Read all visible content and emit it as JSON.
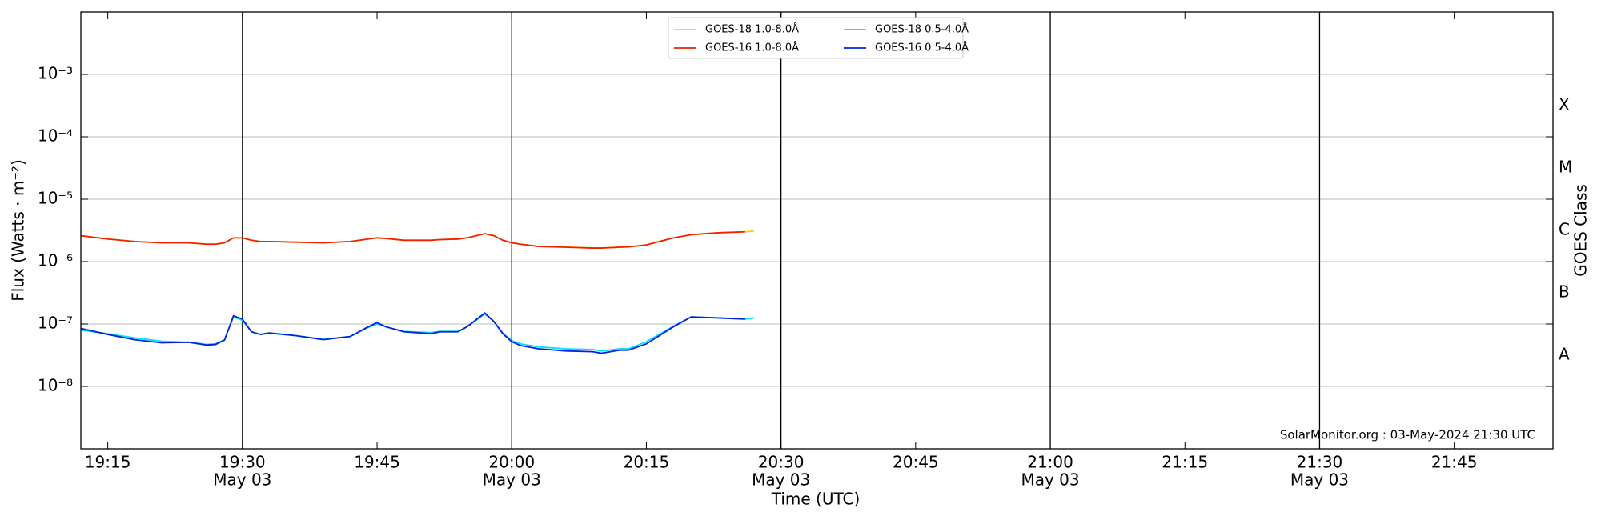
{
  "chart_data": {
    "type": "line",
    "y_label": "Flux (Watts · m⁻²)",
    "x_label": "Time (UTC)",
    "y2_label": "GOES Class",
    "annotation": "SolarMonitor.org : 03-May-2024 21:30 UTC",
    "log_y": true,
    "grid": true,
    "legend": "top-center",
    "x": [
      "19:12",
      "19:15",
      "19:18",
      "19:21",
      "19:24",
      "19:26",
      "19:27",
      "19:28",
      "19:29",
      "19:30",
      "19:31",
      "19:32",
      "19:33",
      "19:36",
      "19:39",
      "19:42",
      "19:44",
      "19:45",
      "19:46",
      "19:48",
      "19:51",
      "19:52",
      "19:54",
      "19:55",
      "19:57",
      "19:58",
      "19:59",
      "20:00",
      "20:01",
      "20:03",
      "20:06",
      "20:09",
      "20:10",
      "20:12",
      "20:13",
      "20:15",
      "20:18",
      "20:20",
      "20:23",
      "20:26",
      "20:27"
    ],
    "xlim": [
      "19:12",
      "21:56"
    ],
    "xticks": [
      "19:15",
      {
        "value": "19:30",
        "label": [
          "19:30",
          "May 03"
        ]
      },
      "19:45",
      {
        "value": "20:00",
        "label": [
          "20:00",
          "May 03"
        ]
      },
      "20:15",
      {
        "value": "20:30",
        "label": [
          "20:30",
          "May 03"
        ]
      },
      "20:45",
      {
        "value": "21:00",
        "label": [
          "21:00",
          "May 03"
        ]
      },
      "21:15",
      {
        "value": "21:30",
        "label": [
          "21:30",
          "May 03"
        ]
      },
      "21:45"
    ],
    "ylim": [
      1e-09,
      0.01
    ],
    "yticks": [
      {
        "value": 0.001,
        "label": "10⁻³"
      },
      {
        "value": 0.0001,
        "label": "10⁻⁴"
      },
      {
        "value": 1e-05,
        "label": "10⁻⁵"
      },
      {
        "value": 1e-06,
        "label": "10⁻⁶"
      },
      {
        "value": 1e-07,
        "label": "10⁻⁷"
      },
      {
        "value": 1e-08,
        "label": "10⁻⁸"
      }
    ],
    "y2lim": [
      1e-09,
      0.01
    ],
    "y2ticks": [
      {
        "value": 3.16e-08,
        "label": "A"
      },
      {
        "value": 3.16e-07,
        "label": "B"
      },
      {
        "value": 3.16e-06,
        "label": "C"
      },
      {
        "value": 3.16e-05,
        "label": "M"
      },
      {
        "value": 0.000316,
        "label": "X"
      }
    ],
    "series": [
      {
        "name": "GOES-18 1.0-8.0Å",
        "color": "#ffd000",
        "values": [
          2.6e-06,
          2.3e-06,
          2.1e-06,
          2e-06,
          2e-06,
          1.9e-06,
          1.9e-06,
          2e-06,
          2.4e-06,
          2.4e-06,
          2.2e-06,
          2.1e-06,
          2.1e-06,
          2.05e-06,
          2e-06,
          2.1e-06,
          2.3e-06,
          2.4e-06,
          2.35e-06,
          2.2e-06,
          2.2e-06,
          2.25e-06,
          2.3e-06,
          2.4e-06,
          2.8e-06,
          2.6e-06,
          2.2e-06,
          2e-06,
          1.9e-06,
          1.75e-06,
          1.7e-06,
          1.65e-06,
          1.65e-06,
          1.7e-06,
          1.72e-06,
          1.85e-06,
          2.4e-06,
          2.7e-06,
          2.9e-06,
          3e-06,
          3.1e-06
        ]
      },
      {
        "name": "GOES-16 1.0-8.0Å",
        "color": "#ee2200",
        "values": [
          2.6e-06,
          2.3e-06,
          2.1e-06,
          2e-06,
          2e-06,
          1.9e-06,
          1.9e-06,
          2e-06,
          2.4e-06,
          2.4e-06,
          2.2e-06,
          2.1e-06,
          2.1e-06,
          2.05e-06,
          2e-06,
          2.1e-06,
          2.3e-06,
          2.4e-06,
          2.35e-06,
          2.2e-06,
          2.2e-06,
          2.25e-06,
          2.3e-06,
          2.4e-06,
          2.8e-06,
          2.6e-06,
          2.2e-06,
          2e-06,
          1.9e-06,
          1.75e-06,
          1.7e-06,
          1.65e-06,
          1.65e-06,
          1.7e-06,
          1.72e-06,
          1.85e-06,
          2.4e-06,
          2.7e-06,
          2.9e-06,
          3e-06,
          null
        ]
      },
      {
        "name": "GOES-18 0.5-4.0Å",
        "color": "#00e0ff",
        "values": [
          8e-08,
          7e-08,
          6e-08,
          5.3e-08,
          5.1e-08,
          4.7e-08,
          4.8e-08,
          5.6e-08,
          1.3e-07,
          1.15e-07,
          7.5e-08,
          6.8e-08,
          7.1e-08,
          6.5e-08,
          5.7e-08,
          6.3e-08,
          8.8e-08,
          1e-07,
          9e-08,
          7.6e-08,
          7.3e-08,
          7.6e-08,
          7.6e-08,
          9e-08,
          1.45e-07,
          1.1e-07,
          7.2e-08,
          5.4e-08,
          4.8e-08,
          4.3e-08,
          4e-08,
          3.9e-08,
          3.7e-08,
          4e-08,
          4e-08,
          5.2e-08,
          9.2e-08,
          1.3e-07,
          1.25e-07,
          1.2e-07,
          1.25e-07
        ]
      },
      {
        "name": "GOES-16 0.5-4.0Å",
        "color": "#0022dd",
        "values": [
          8.5e-08,
          6.8e-08,
          5.6e-08,
          5e-08,
          5.1e-08,
          4.6e-08,
          4.7e-08,
          5.5e-08,
          1.35e-07,
          1.2e-07,
          7.5e-08,
          6.8e-08,
          7.2e-08,
          6.5e-08,
          5.6e-08,
          6.3e-08,
          9e-08,
          1.05e-07,
          9e-08,
          7.5e-08,
          7e-08,
          7.5e-08,
          7.5e-08,
          9e-08,
          1.5e-07,
          1.1e-07,
          7e-08,
          5.2e-08,
          4.5e-08,
          4e-08,
          3.7e-08,
          3.6e-08,
          3.4e-08,
          3.8e-08,
          3.8e-08,
          4.8e-08,
          9e-08,
          1.3e-07,
          1.25e-07,
          1.2e-07,
          null
        ]
      }
    ]
  }
}
